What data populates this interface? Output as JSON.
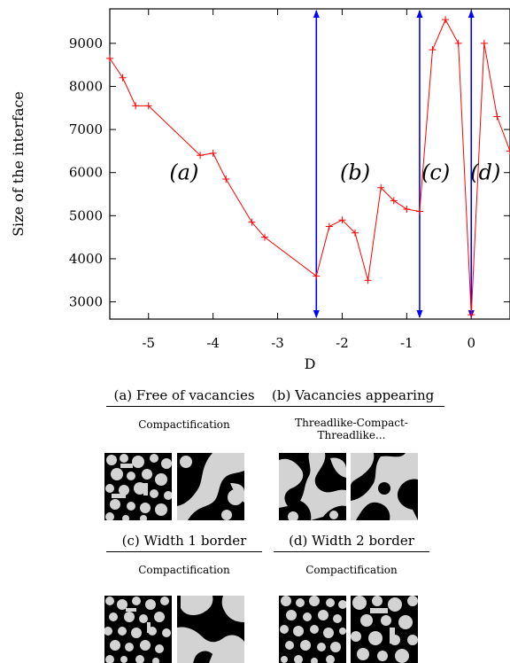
{
  "chart_data": {
    "type": "line",
    "xlabel": "D",
    "ylabel": "Size of the interface",
    "xlim": [
      -5.6,
      0.6
    ],
    "ylim": [
      2600,
      9800
    ],
    "xticks": [
      -5,
      -4,
      -3,
      -2,
      -1,
      0
    ],
    "xtick_labels": [
      "-5",
      "-4",
      "-3",
      "-2",
      "-1",
      "0"
    ],
    "yticks": [
      3000,
      4000,
      5000,
      6000,
      7000,
      8000,
      9000
    ],
    "ytick_labels": [
      "3000",
      "4000",
      "5000",
      "6000",
      "7000",
      "8000",
      "9000"
    ],
    "grid": false,
    "series": [
      {
        "color": "#ff0000",
        "marker": "plus",
        "x": [
          -5.6,
          -5.4,
          -5.2,
          -5.0,
          -4.2,
          -4.0,
          -3.8,
          -3.4,
          -3.2,
          -2.4,
          -2.2,
          -2.0,
          -1.8,
          -1.6,
          -1.4,
          -1.2,
          -1.0,
          -0.8,
          -0.6,
          -0.4,
          -0.2,
          0.0,
          0.2,
          0.4,
          0.6
        ],
        "y": [
          8650,
          8200,
          7550,
          7550,
          6400,
          6450,
          5850,
          4850,
          4500,
          3600,
          4750,
          4900,
          4600,
          3500,
          5650,
          5350,
          5150,
          5100,
          8850,
          9550,
          9000,
          2700,
          9000,
          7300,
          6500
        ]
      }
    ],
    "vertical_markers": {
      "color": "#0000ff",
      "x": [
        -2.4,
        -0.8,
        0.0
      ]
    },
    "region_labels": [
      {
        "text": "(a)",
        "x": -4.45,
        "y": 6000
      },
      {
        "text": "(b)",
        "x": -1.8,
        "y": 6000
      },
      {
        "text": "(c)",
        "x": -0.55,
        "y": 6000
      },
      {
        "text": "(d)",
        "x": 0.22,
        "y": 6000
      }
    ]
  },
  "panels": {
    "a": {
      "title": "(a) Free of vacancies",
      "note": "Compactification"
    },
    "b": {
      "title": "(b) Vacancies appearing",
      "note": "Threadlike-Compact-\nThreadlike..."
    },
    "c": {
      "title": "(c) Width 1 border",
      "note": "Compactification"
    },
    "d": {
      "title": "(d) Width 2 border",
      "note": "Compactification"
    }
  }
}
